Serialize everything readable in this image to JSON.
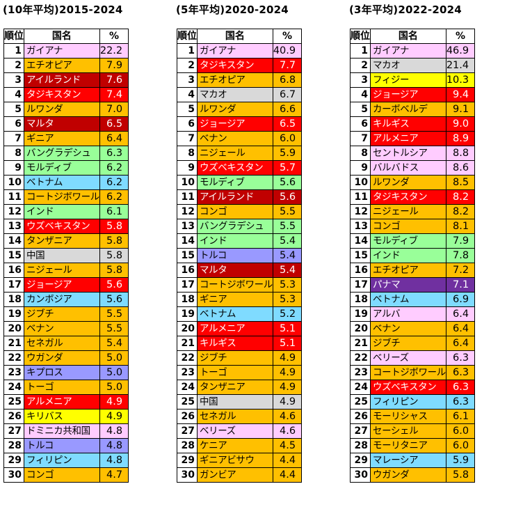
{
  "colors": {
    "pink": "#FFCCFF",
    "orange": "#FFC000",
    "darkred": "#C00000",
    "red": "#FF0000",
    "green": "#99FF99",
    "skyblue": "#7FDBFF",
    "gray": "#D9D9D9",
    "lavender": "#9999FF",
    "yellow": "#FFFF00",
    "purple": "#7030A0"
  },
  "chart_data": [
    {
      "type": "table",
      "title": "(10年平均)2015-2024",
      "columns": [
        "順位",
        "国名",
        "%"
      ],
      "rows": [
        {
          "rank": "1",
          "name": "ガイアナ",
          "value": "22.2",
          "color": "pink"
        },
        {
          "rank": "2",
          "name": "エチオピア",
          "value": "7.9",
          "color": "orange"
        },
        {
          "rank": "3",
          "name": "アイルランド",
          "value": "7.6",
          "color": "darkred"
        },
        {
          "rank": "4",
          "name": "タジキスタン",
          "value": "7.4",
          "color": "red"
        },
        {
          "rank": "5",
          "name": "ルワンダ",
          "value": "7.0",
          "color": "orange"
        },
        {
          "rank": "6",
          "name": "マルタ",
          "value": "6.5",
          "color": "darkred"
        },
        {
          "rank": "7",
          "name": "ギニア",
          "value": "6.4",
          "color": "orange"
        },
        {
          "rank": "8",
          "name": "バングラデシュ",
          "value": "6.3",
          "color": "green"
        },
        {
          "rank": "9",
          "name": "モルディブ",
          "value": "6.2",
          "color": "green"
        },
        {
          "rank": "10",
          "name": "ベトナム",
          "value": "6.2",
          "color": "skyblue"
        },
        {
          "rank": "11",
          "name": "コートジボワール",
          "value": "6.2",
          "color": "orange"
        },
        {
          "rank": "12",
          "name": "インド",
          "value": "6.1",
          "color": "green"
        },
        {
          "rank": "13",
          "name": "ウズベキスタン",
          "value": "5.8",
          "color": "red"
        },
        {
          "rank": "14",
          "name": "タンザニア",
          "value": "5.8",
          "color": "orange"
        },
        {
          "rank": "15",
          "name": "中国",
          "value": "5.8",
          "color": "gray"
        },
        {
          "rank": "16",
          "name": "ニジェール",
          "value": "5.8",
          "color": "orange"
        },
        {
          "rank": "17",
          "name": "ジョージア",
          "value": "5.6",
          "color": "red"
        },
        {
          "rank": "18",
          "name": "カンボジア",
          "value": "5.6",
          "color": "skyblue"
        },
        {
          "rank": "19",
          "name": "ジブチ",
          "value": "5.5",
          "color": "orange"
        },
        {
          "rank": "20",
          "name": "ベナン",
          "value": "5.5",
          "color": "orange"
        },
        {
          "rank": "21",
          "name": "セネガル",
          "value": "5.4",
          "color": "orange"
        },
        {
          "rank": "22",
          "name": "ウガンダ",
          "value": "5.0",
          "color": "orange"
        },
        {
          "rank": "23",
          "name": "キプロス",
          "value": "5.0",
          "color": "lavender"
        },
        {
          "rank": "24",
          "name": "トーゴ",
          "value": "5.0",
          "color": "orange"
        },
        {
          "rank": "25",
          "name": "アルメニア",
          "value": "4.9",
          "color": "red"
        },
        {
          "rank": "26",
          "name": "キリバス",
          "value": "4.9",
          "color": "yellow"
        },
        {
          "rank": "27",
          "name": "ドミニカ共和国",
          "value": "4.8",
          "color": "pink"
        },
        {
          "rank": "28",
          "name": "トルコ",
          "value": "4.8",
          "color": "lavender"
        },
        {
          "rank": "29",
          "name": "フィリピン",
          "value": "4.8",
          "color": "skyblue"
        },
        {
          "rank": "30",
          "name": "コンゴ",
          "value": "4.7",
          "color": "orange"
        }
      ]
    },
    {
      "type": "table",
      "title": "(5年平均)2020-2024",
      "columns": [
        "順位",
        "国名",
        "%"
      ],
      "rows": [
        {
          "rank": "1",
          "name": "ガイアナ",
          "value": "40.9",
          "color": "pink"
        },
        {
          "rank": "2",
          "name": "タジキスタン",
          "value": "7.7",
          "color": "red"
        },
        {
          "rank": "3",
          "name": "エチオピア",
          "value": "6.8",
          "color": "orange"
        },
        {
          "rank": "4",
          "name": "マカオ",
          "value": "6.7",
          "color": "gray"
        },
        {
          "rank": "5",
          "name": "ルワンダ",
          "value": "6.6",
          "color": "orange"
        },
        {
          "rank": "6",
          "name": "ジョージア",
          "value": "6.5",
          "color": "red"
        },
        {
          "rank": "7",
          "name": "ベナン",
          "value": "6.0",
          "color": "orange"
        },
        {
          "rank": "8",
          "name": "ニジェール",
          "value": "5.9",
          "color": "orange"
        },
        {
          "rank": "9",
          "name": "ウズベキスタン",
          "value": "5.7",
          "color": "red"
        },
        {
          "rank": "10",
          "name": "モルディブ",
          "value": "5.6",
          "color": "green"
        },
        {
          "rank": "11",
          "name": "アイルランド",
          "value": "5.6",
          "color": "darkred"
        },
        {
          "rank": "12",
          "name": "コンゴ",
          "value": "5.5",
          "color": "orange"
        },
        {
          "rank": "13",
          "name": "バングラデシュ",
          "value": "5.5",
          "color": "green"
        },
        {
          "rank": "14",
          "name": "インド",
          "value": "5.4",
          "color": "green"
        },
        {
          "rank": "15",
          "name": "トルコ",
          "value": "5.4",
          "color": "lavender"
        },
        {
          "rank": "16",
          "name": "マルタ",
          "value": "5.4",
          "color": "darkred"
        },
        {
          "rank": "17",
          "name": "コートジボワール",
          "value": "5.3",
          "color": "orange"
        },
        {
          "rank": "18",
          "name": "ギニア",
          "value": "5.3",
          "color": "orange"
        },
        {
          "rank": "19",
          "name": "ベトナム",
          "value": "5.2",
          "color": "skyblue"
        },
        {
          "rank": "20",
          "name": "アルメニア",
          "value": "5.1",
          "color": "red"
        },
        {
          "rank": "21",
          "name": "キルギス",
          "value": "5.1",
          "color": "red"
        },
        {
          "rank": "22",
          "name": "ジブチ",
          "value": "4.9",
          "color": "orange"
        },
        {
          "rank": "23",
          "name": "トーゴ",
          "value": "4.9",
          "color": "orange"
        },
        {
          "rank": "24",
          "name": "タンザニア",
          "value": "4.9",
          "color": "orange"
        },
        {
          "rank": "25",
          "name": "中国",
          "value": "4.9",
          "color": "gray"
        },
        {
          "rank": "26",
          "name": "セネガル",
          "value": "4.6",
          "color": "orange"
        },
        {
          "rank": "27",
          "name": "ベリーズ",
          "value": "4.6",
          "color": "pink"
        },
        {
          "rank": "28",
          "name": "ケニア",
          "value": "4.5",
          "color": "orange"
        },
        {
          "rank": "29",
          "name": "ギニアビサウ",
          "value": "4.4",
          "color": "orange"
        },
        {
          "rank": "30",
          "name": "ガンビア",
          "value": "4.4",
          "color": "orange"
        }
      ]
    },
    {
      "type": "table",
      "title": "(3年平均)2022-2024",
      "columns": [
        "順位",
        "国名",
        "%"
      ],
      "rows": [
        {
          "rank": "1",
          "name": "ガイアナ",
          "value": "46.9",
          "color": "pink"
        },
        {
          "rank": "2",
          "name": "マカオ",
          "value": "21.4",
          "color": "gray"
        },
        {
          "rank": "3",
          "name": "フィジー",
          "value": "10.3",
          "color": "yellow"
        },
        {
          "rank": "4",
          "name": "ジョージア",
          "value": "9.4",
          "color": "red"
        },
        {
          "rank": "5",
          "name": "カーボベルデ",
          "value": "9.1",
          "color": "orange"
        },
        {
          "rank": "6",
          "name": "キルギス",
          "value": "9.0",
          "color": "red"
        },
        {
          "rank": "7",
          "name": "アルメニア",
          "value": "8.9",
          "color": "red"
        },
        {
          "rank": "8",
          "name": "セントルシア",
          "value": "8.8",
          "color": "pink"
        },
        {
          "rank": "9",
          "name": "バルバドス",
          "value": "8.6",
          "color": "pink"
        },
        {
          "rank": "10",
          "name": "ルワンダ",
          "value": "8.5",
          "color": "orange"
        },
        {
          "rank": "11",
          "name": "タジキスタン",
          "value": "8.2",
          "color": "red"
        },
        {
          "rank": "12",
          "name": "ニジェール",
          "value": "8.2",
          "color": "orange"
        },
        {
          "rank": "13",
          "name": "コンゴ",
          "value": "8.1",
          "color": "orange"
        },
        {
          "rank": "14",
          "name": "モルディブ",
          "value": "7.9",
          "color": "green"
        },
        {
          "rank": "15",
          "name": "インド",
          "value": "7.8",
          "color": "green"
        },
        {
          "rank": "16",
          "name": "エチオピア",
          "value": "7.2",
          "color": "orange"
        },
        {
          "rank": "17",
          "name": "パナマ",
          "value": "7.1",
          "color": "purple"
        },
        {
          "rank": "18",
          "name": "ベトナム",
          "value": "6.9",
          "color": "skyblue"
        },
        {
          "rank": "19",
          "name": "アルバ",
          "value": "6.4",
          "color": "pink"
        },
        {
          "rank": "20",
          "name": "ベナン",
          "value": "6.4",
          "color": "orange"
        },
        {
          "rank": "21",
          "name": "ジブチ",
          "value": "6.4",
          "color": "orange"
        },
        {
          "rank": "22",
          "name": "ベリーズ",
          "value": "6.3",
          "color": "pink"
        },
        {
          "rank": "23",
          "name": "コートジボワール",
          "value": "6.3",
          "color": "orange"
        },
        {
          "rank": "24",
          "name": "ウズベキスタン",
          "value": "6.3",
          "color": "red"
        },
        {
          "rank": "25",
          "name": "フィリピン",
          "value": "6.3",
          "color": "skyblue"
        },
        {
          "rank": "26",
          "name": "モーリシャス",
          "value": "6.1",
          "color": "orange"
        },
        {
          "rank": "27",
          "name": "セーシェル",
          "value": "6.0",
          "color": "orange"
        },
        {
          "rank": "28",
          "name": "モーリタニア",
          "value": "6.0",
          "color": "orange"
        },
        {
          "rank": "29",
          "name": "マレーシア",
          "value": "5.9",
          "color": "skyblue"
        },
        {
          "rank": "30",
          "name": "ウガンダ",
          "value": "5.8",
          "color": "orange"
        }
      ]
    }
  ]
}
